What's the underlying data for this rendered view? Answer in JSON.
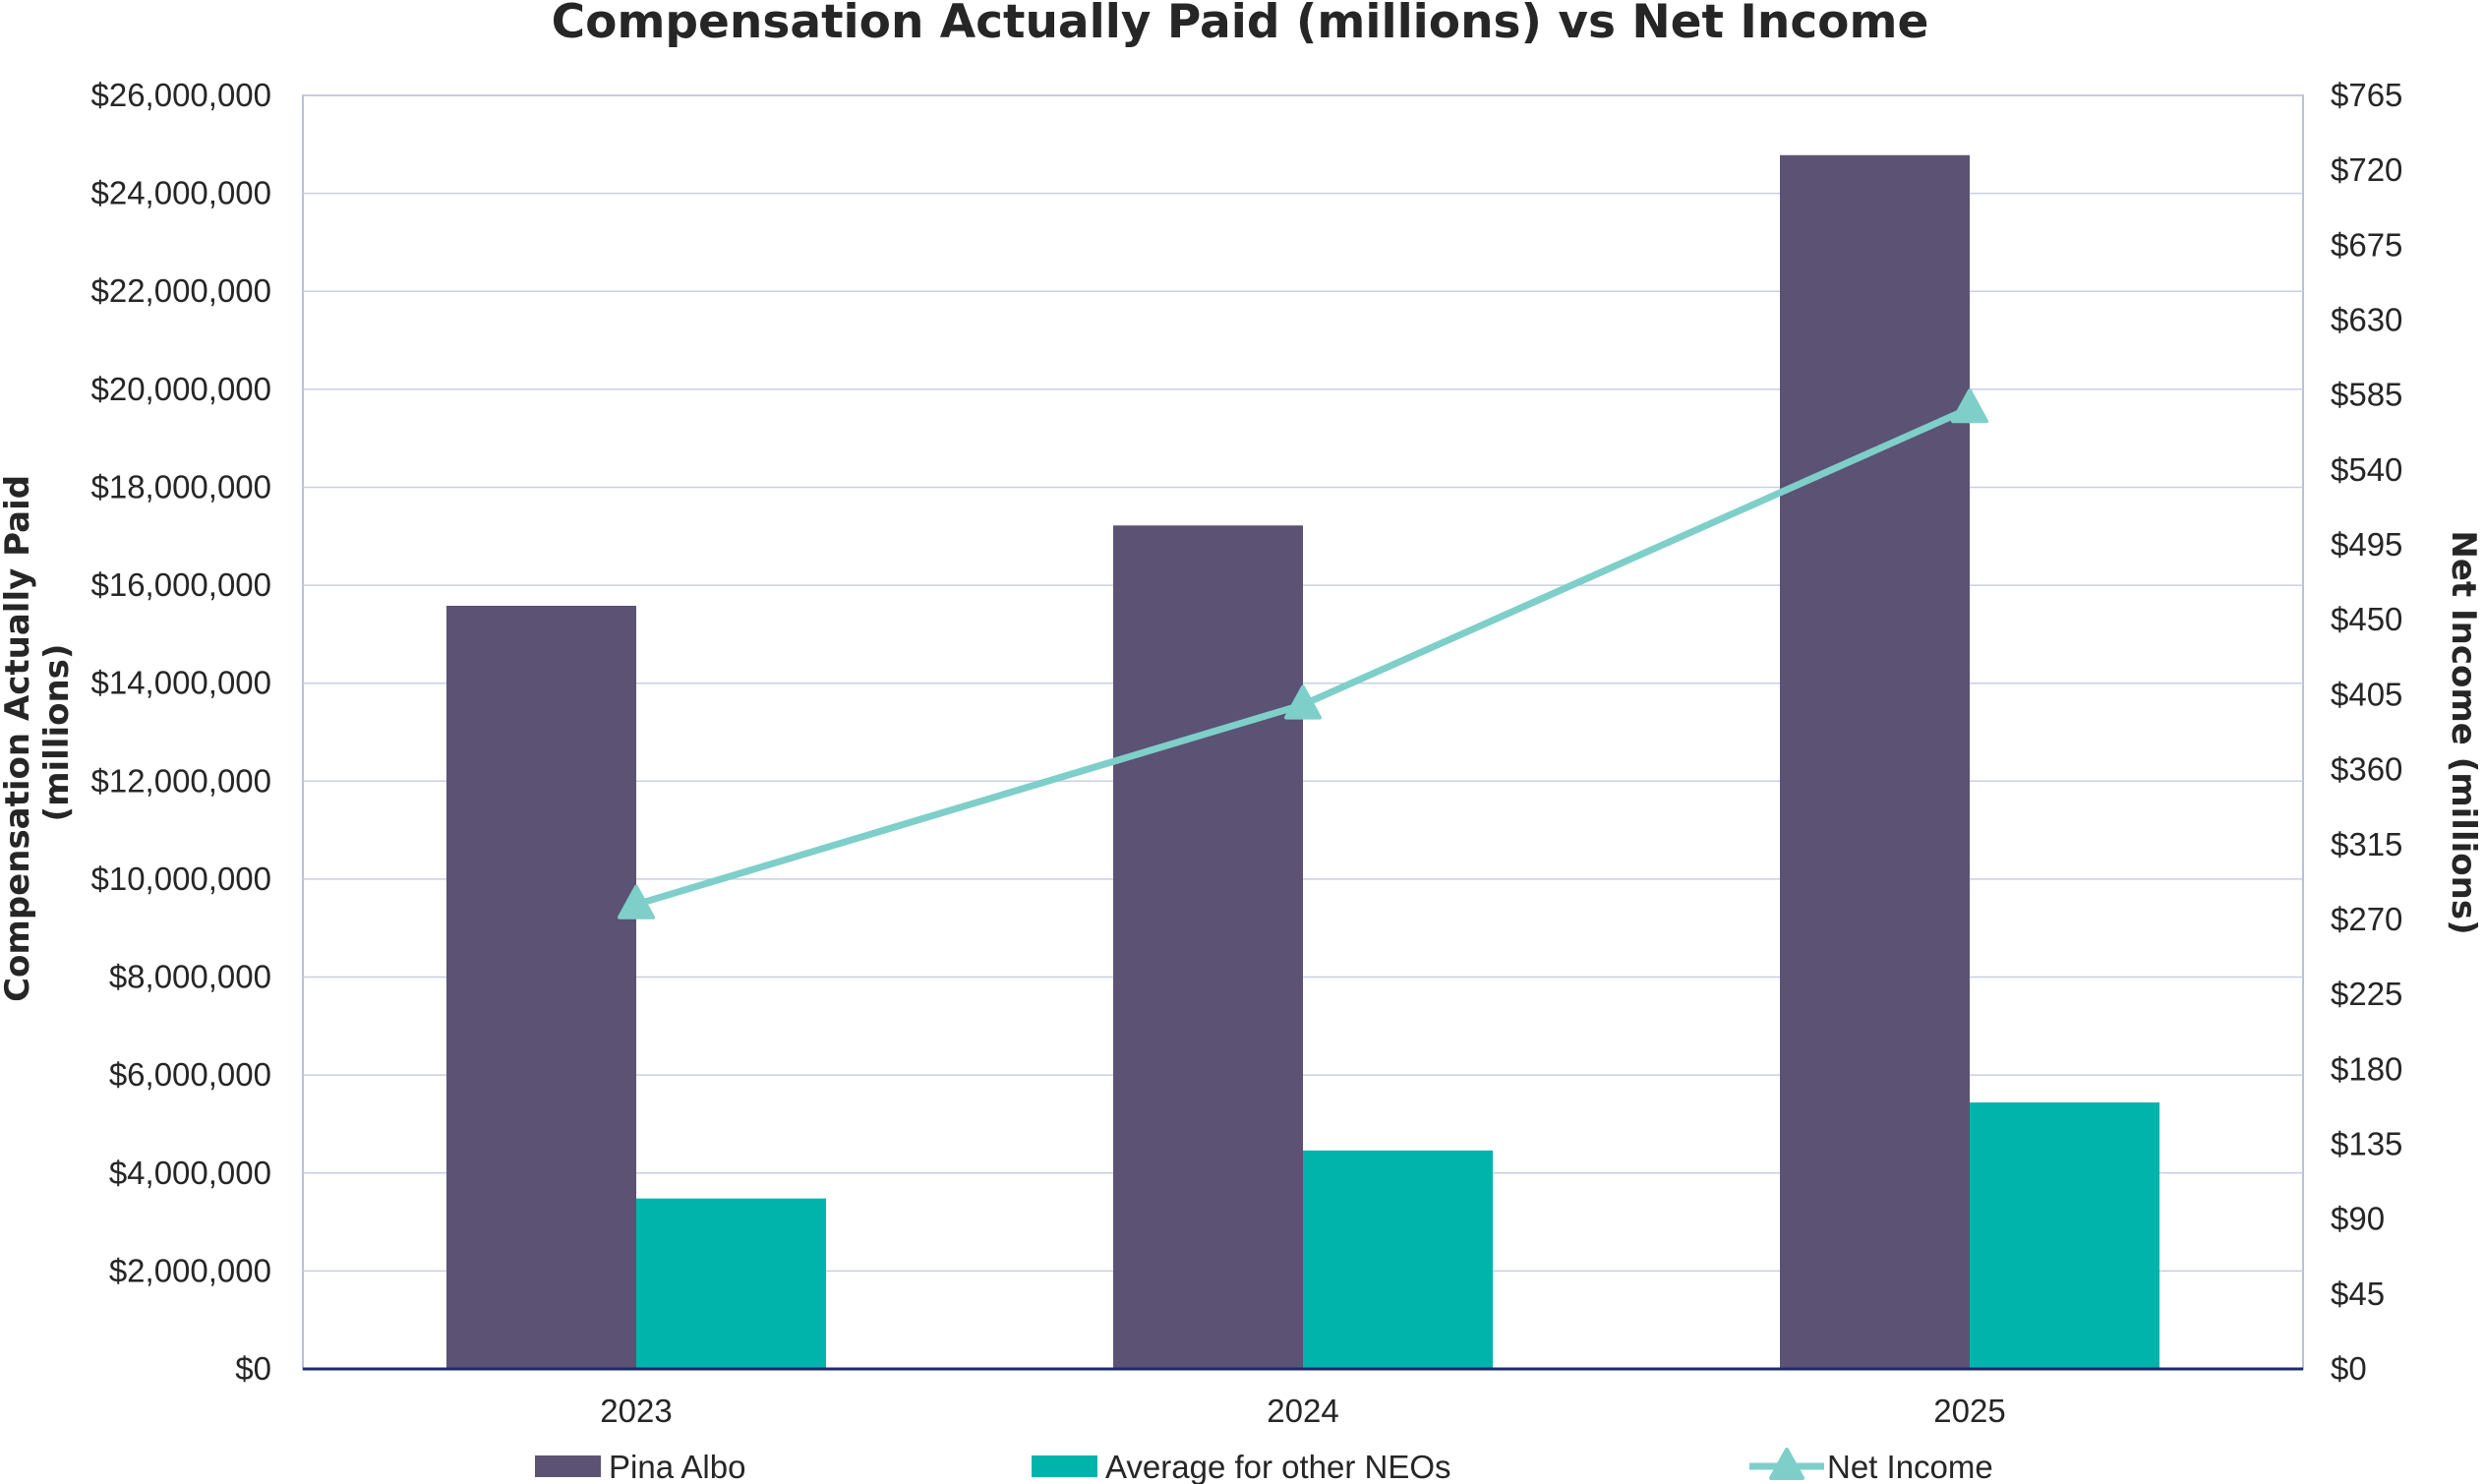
{
  "chart_data": {
    "type": "bar",
    "title": "Compensation Actually Paid (millions) vs Net Income",
    "categories": [
      "2023",
      "2024",
      "2025"
    ],
    "y_left": {
      "label_line1": "Compensation Actually Paid",
      "label_line2": "(millions)",
      "ylim": [
        0,
        26000000
      ],
      "ticks": [
        "$0",
        "$2,000,000",
        "$4,000,000",
        "$6,000,000",
        "$8,000,000",
        "$10,000,000",
        "$12,000,000",
        "$14,000,000",
        "$16,000,000",
        "$18,000,000",
        "$20,000,000",
        "$22,000,000",
        "$24,000,000",
        "$26,000,000"
      ]
    },
    "y_right": {
      "label": "Net Income (millions)",
      "ylim": [
        0,
        765
      ],
      "ticks": [
        "$0",
        "$45",
        "$90",
        "$135",
        "$180",
        "$225",
        "$270",
        "$315",
        "$360",
        "$405",
        "$450",
        "$495",
        "$540",
        "$585",
        "$630",
        "$675",
        "$720",
        "$765"
      ]
    },
    "series": [
      {
        "name": "Pina Albo",
        "type": "bar",
        "axis": "left",
        "color": "#5b5274",
        "values": [
          15580000,
          17220000,
          24780000
        ]
      },
      {
        "name": "Average for other NEOs",
        "type": "bar",
        "axis": "left",
        "color": "#00b4ac",
        "values": [
          3480000,
          4460000,
          5440000
        ]
      },
      {
        "name": "Net Income",
        "type": "line",
        "axis": "right",
        "color": "#7ecfc9",
        "marker": "triangle",
        "values": [
          279,
          399,
          577
        ]
      }
    ],
    "grid": true,
    "legend_position": "bottom"
  }
}
